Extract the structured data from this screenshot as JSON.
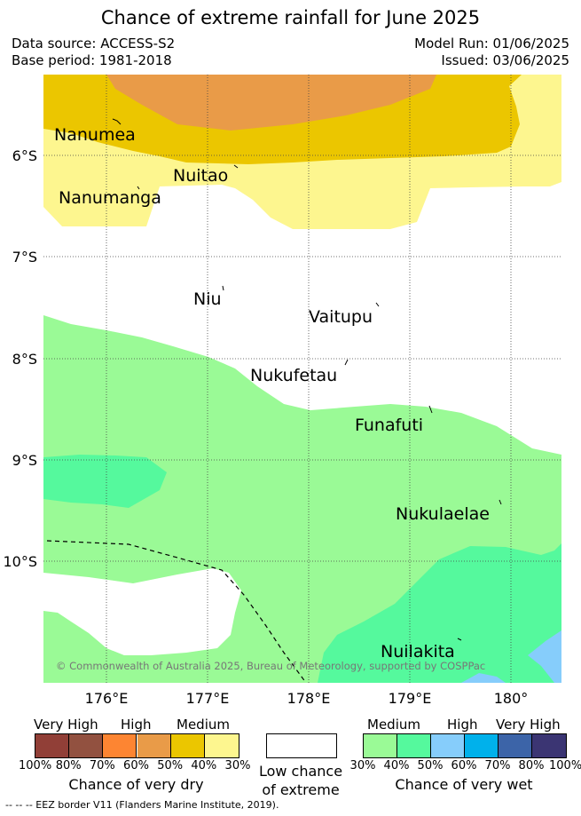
{
  "title": "Chance of extreme rainfall for June 2025",
  "header": {
    "data_source": "Data source: ACCESS-S2",
    "base_period": "Base period: 1981-2018",
    "model_run": "Model Run: 01/06/2025",
    "issued": "Issued: 03/06/2025"
  },
  "map": {
    "lat_labels": [
      "6°S",
      "7°S",
      "8°S",
      "9°S",
      "10°S"
    ],
    "lon_labels": [
      "176°E",
      "177°E",
      "178°E",
      "179°E",
      "180°"
    ],
    "places": [
      {
        "id": "nanumea",
        "label": "Nanumea"
      },
      {
        "id": "nuitao",
        "label": "Nuitao"
      },
      {
        "id": "nanumanga",
        "label": "Nanumanga"
      },
      {
        "id": "niu",
        "label": "Niu"
      },
      {
        "id": "vaitupu",
        "label": "Vaitupu"
      },
      {
        "id": "nukufetau",
        "label": "Nukufetau"
      },
      {
        "id": "funafuti",
        "label": "Funafuti"
      },
      {
        "id": "nukulaelae",
        "label": "Nukulaelae"
      },
      {
        "id": "nuilakita",
        "label": "Nuilakita"
      }
    ],
    "copyright": "© Commonwealth of Australia 2025, Bureau of Meteorology, supported by COSPPac",
    "colors": {
      "dry_30_40": "#fdf68f",
      "dry_40_50": "#ebc600",
      "dry_50_60": "#e99b48",
      "wet_30_40": "#9afa96",
      "wet_40_50": "#55f99d",
      "wet_50_60": "#86cdfb"
    }
  },
  "legend": {
    "dry": {
      "headers": [
        "Very High",
        "High",
        "Medium"
      ],
      "pcts": [
        "100%",
        "80%",
        "70%",
        "60%",
        "50%",
        "40%",
        "30%"
      ],
      "colors": [
        "#913f37",
        "#925140",
        "#fd8532",
        "#e99b48",
        "#ebc600",
        "#fdf68f"
      ],
      "caption": "Chance of very dry"
    },
    "low": {
      "caption_line1": "Low chance",
      "caption_line2": "of extreme"
    },
    "wet": {
      "headers": [
        "Medium",
        "High",
        "Very High"
      ],
      "pcts": [
        "30%",
        "40%",
        "50%",
        "60%",
        "70%",
        "80%",
        "100%"
      ],
      "colors": [
        "#9afa96",
        "#55f99d",
        "#86cdfb",
        "#00b1eb",
        "#3c64a8",
        "#3b3573"
      ],
      "caption": "Chance of very wet"
    }
  },
  "footer": "-- -- -- EEZ border V11 (Flanders Marine Institute, 2019)."
}
